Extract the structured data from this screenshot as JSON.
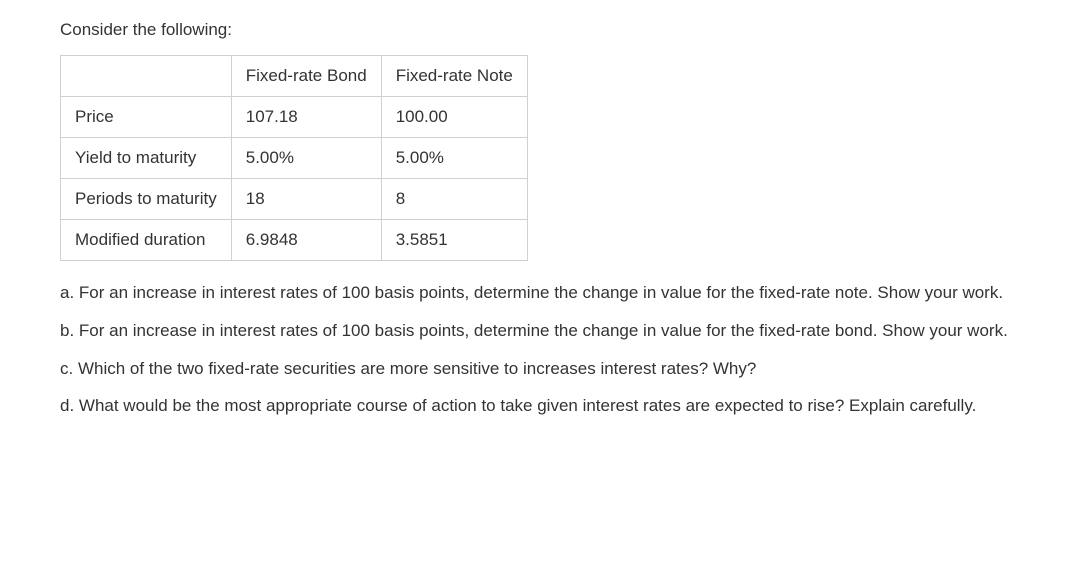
{
  "intro": "Consider the following:",
  "table": {
    "columns": [
      "",
      "Fixed-rate Bond",
      "Fixed-rate Note"
    ],
    "rows": [
      [
        "Price",
        "107.18",
        "100.00"
      ],
      [
        "Yield to maturity",
        "5.00%",
        "5.00%"
      ],
      [
        "Periods to maturity",
        "18",
        "8"
      ],
      [
        "Modified duration",
        "6.9848",
        "3.5851"
      ]
    ],
    "border_color": "#d0d0d0",
    "text_color": "#333333",
    "fontsize": 17,
    "cell_padding": "10px 14px"
  },
  "questions": {
    "a": "a. For an increase in interest rates of 100 basis points, determine the change in value for the fixed-rate note. Show your work.",
    "b": "b. For an increase in interest rates of 100 basis points, determine the change in value for the fixed-rate bond. Show your work.",
    "c": "c. Which of the two fixed-rate securities are more sensitive to increases interest rates? Why?",
    "d": "d. What would be the most appropriate course of action to take given interest rates are expected to rise? Explain carefully."
  }
}
